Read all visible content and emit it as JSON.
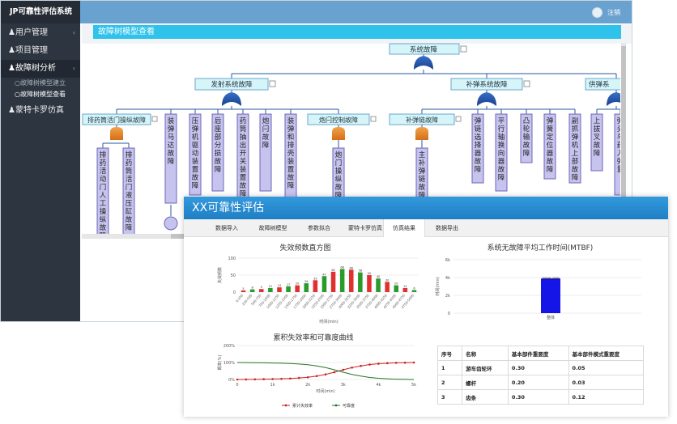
{
  "app": {
    "title": "JP可靠性评估系统",
    "user_label": "注销"
  },
  "sidebar": {
    "items": [
      {
        "label": "用户管理"
      },
      {
        "label": "项目管理"
      },
      {
        "label": "故障树分析"
      },
      {
        "label": "蒙特卡罗仿真"
      }
    ],
    "sub_items": [
      {
        "label": "故障树模型建立"
      },
      {
        "label": "故障树模型查看"
      }
    ]
  },
  "page": {
    "header": "故障树模型查看"
  },
  "tree": {
    "root": "系统故障",
    "level1": [
      "发射系统故障",
      "补弹系统故障",
      "供弹系"
    ],
    "level2": [
      "排药筒活门操纵故障",
      "炮闩控制故障",
      "补弹链故障"
    ],
    "vert_nodes": [
      "装弹马达故障",
      "压弹机驱动装置故障",
      "后座部分损故障",
      "药筒抽出开关装置故障",
      "炮闩故障",
      "装弹和排壳装置故障",
      "弹链选择器故障",
      "平行轴换向器故障",
      "凸轮输故障",
      "弹簧定位器故障",
      "副抓弹机上部故障",
      "上拔叉故障",
      "弹头"
    ],
    "leaf_left": [
      "排药活动门人工操纵故障",
      "排药筒活门液压缸故障"
    ],
    "leaf_mid": [
      "炮门操纵故障"
    ],
    "leaf_right": [
      "主补弹链故障"
    ],
    "right_edge": "弹头与药入弹量"
  },
  "front": {
    "title": "XX可靠性评估",
    "tabs": [
      "数据导入",
      "故障树模型",
      "参数拟合",
      "蒙特卡罗仿真",
      "仿真结果",
      "数据导出"
    ],
    "active_tab": "仿真结果"
  },
  "chart_data": [
    {
      "type": "bar",
      "title": "失效频数直方图",
      "xlabel": "时间(min)",
      "ylabel": "失效频数",
      "ylim": [
        0,
        100
      ],
      "yticks": [
        "0",
        "50",
        "100"
      ],
      "categories": [
        "0-250",
        "250-500",
        "500-750",
        "750-1000",
        "1000-1250",
        "1250-1500",
        "1500-1750",
        "1750-2000",
        "2000-2250",
        "2250-2500",
        "2500-2750",
        "2750-3000",
        "3000-3250",
        "3250-3500",
        "3500-3750",
        "3750-4000",
        "4000-4250",
        "4250-4500",
        "4500-4750",
        "4750-5000"
      ],
      "values": [
        5,
        8,
        9,
        12,
        14,
        17,
        20,
        26,
        35,
        47,
        60,
        68,
        66,
        58,
        50,
        40,
        30,
        20,
        12,
        6
      ],
      "colors": [
        "#e03030",
        "#2a9a2a"
      ]
    },
    {
      "type": "bar",
      "title": "系统无故障平均工作时间(MTBF)",
      "ylabel": "时间(min)",
      "ylim": [
        0,
        6000
      ],
      "yticks": [
        "0",
        "2k",
        "4k",
        "6k"
      ],
      "categories": [
        "整体"
      ],
      "values": [
        3900
      ],
      "bar_label": "3900.000",
      "color": "#1515e8"
    },
    {
      "type": "line",
      "title": "累积失效率和可靠度曲线",
      "xlabel": "时间(min)",
      "ylabel": "概率(%)",
      "ylim": [
        0,
        200
      ],
      "yticks": [
        "0%",
        "100%",
        "200%"
      ],
      "xticks": [
        "0",
        "1k",
        "2k",
        "3k",
        "4k",
        "5k"
      ],
      "x": [
        0,
        250,
        500,
        750,
        1000,
        1250,
        1500,
        1750,
        2000,
        2250,
        2500,
        2750,
        3000,
        3250,
        3500,
        3750,
        4000,
        4250,
        4500,
        4750,
        5000
      ],
      "series": [
        {
          "name": "累计失效率",
          "color": "#cc2222",
          "values": [
            0,
            0.5,
            1,
            2,
            3,
            4,
            6,
            9,
            13,
            20,
            30,
            43,
            57,
            70,
            80,
            88,
            93,
            96,
            98,
            99,
            100
          ]
        },
        {
          "name": "可靠度",
          "color": "#227722",
          "values": [
            100,
            99.5,
            99,
            98,
            97,
            96,
            94,
            91,
            87,
            80,
            70,
            57,
            43,
            30,
            20,
            12,
            7,
            4,
            2,
            1,
            0
          ]
        }
      ]
    }
  ],
  "table": {
    "headers": [
      "序号",
      "名称",
      "基本部件重要度",
      "基本部件模式重要度"
    ],
    "rows": [
      [
        "1",
        "游车齿轮环",
        "0.30",
        "0.05"
      ],
      [
        "2",
        "螺杆",
        "0.20",
        "0.03"
      ],
      [
        "3",
        "齿条",
        "0.30",
        "0.12"
      ]
    ]
  }
}
